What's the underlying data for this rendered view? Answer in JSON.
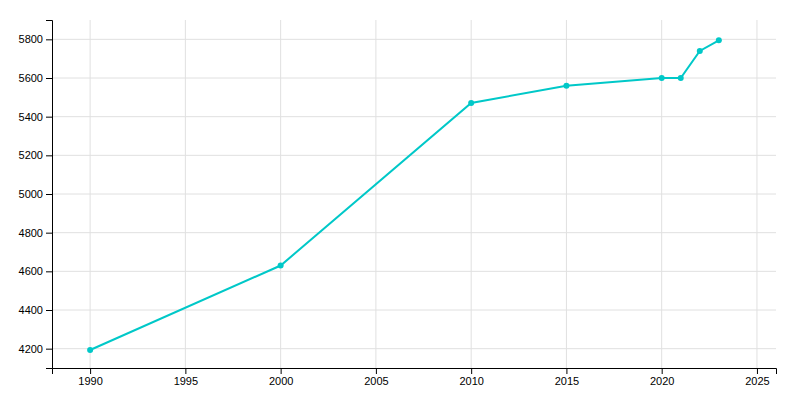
{
  "chart_data": {
    "type": "line",
    "x": [
      1990,
      2000,
      2010,
      2015,
      2020,
      2021,
      2022,
      2023
    ],
    "values": [
      4193,
      4630,
      5471,
      5560,
      5600,
      5600,
      5740,
      5795
    ],
    "color": "#00c8c8",
    "marker": "circle",
    "xlim": [
      1988,
      2026
    ],
    "ylim": [
      4100,
      5900
    ],
    "xticks": [
      1990,
      1995,
      2000,
      2005,
      2010,
      2015,
      2020,
      2025
    ],
    "yticks": [
      4200,
      4400,
      4600,
      4800,
      5000,
      5200,
      5400,
      5600,
      5800
    ],
    "grid": true
  }
}
